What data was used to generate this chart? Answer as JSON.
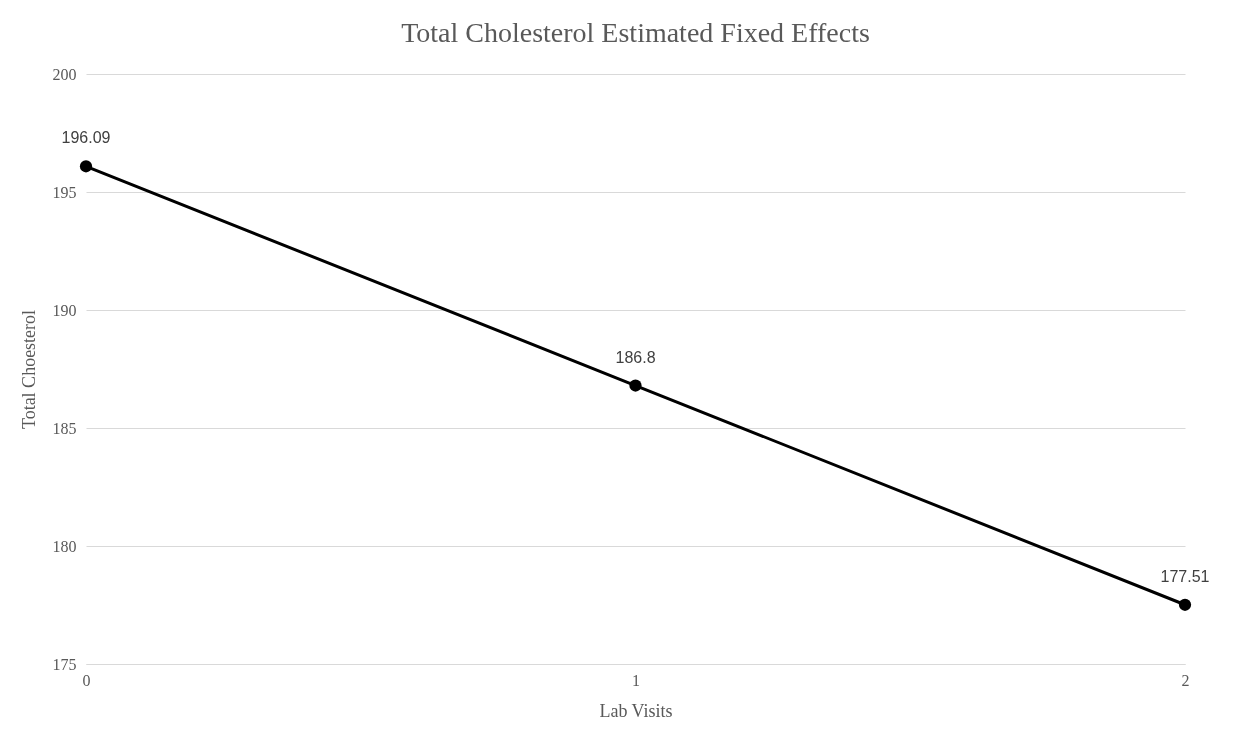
{
  "chart_data": {
    "type": "line",
    "title": "Total Cholesterol Estimated Fixed Effects",
    "xlabel": "Lab Visits",
    "ylabel": "Total Choesterol",
    "x": [
      0,
      1,
      2
    ],
    "series": [
      {
        "color": "#000000",
        "values": [
          196.09,
          186.8,
          177.51
        ]
      }
    ],
    "xlim": [
      0,
      2
    ],
    "xticks": [
      0,
      1,
      2
    ],
    "ylim": [
      175,
      200
    ],
    "yticks": [
      175,
      180,
      185,
      190,
      195,
      200
    ],
    "grid": "y",
    "marker": "circle",
    "line_style": "solid",
    "data_labels": true
  }
}
